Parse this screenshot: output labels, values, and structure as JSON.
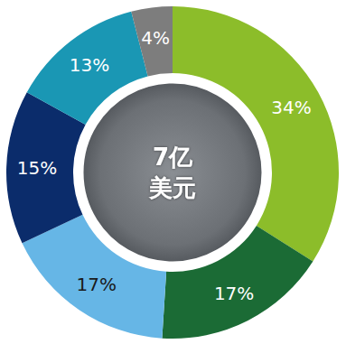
{
  "chart_data": {
    "type": "pie",
    "values": [
      34,
      17,
      17,
      15,
      13,
      4
    ],
    "value_labels": [
      "34%",
      "17%",
      "17%",
      "15%",
      "13%",
      "4%"
    ],
    "colors": [
      "#8cbd2a",
      "#1b6b35",
      "#66b6e6",
      "#0b2c6b",
      "#1a97b4",
      "#7d7d7d"
    ],
    "data_labels": true,
    "annotations": [
      "7亿",
      "美元"
    ]
  }
}
